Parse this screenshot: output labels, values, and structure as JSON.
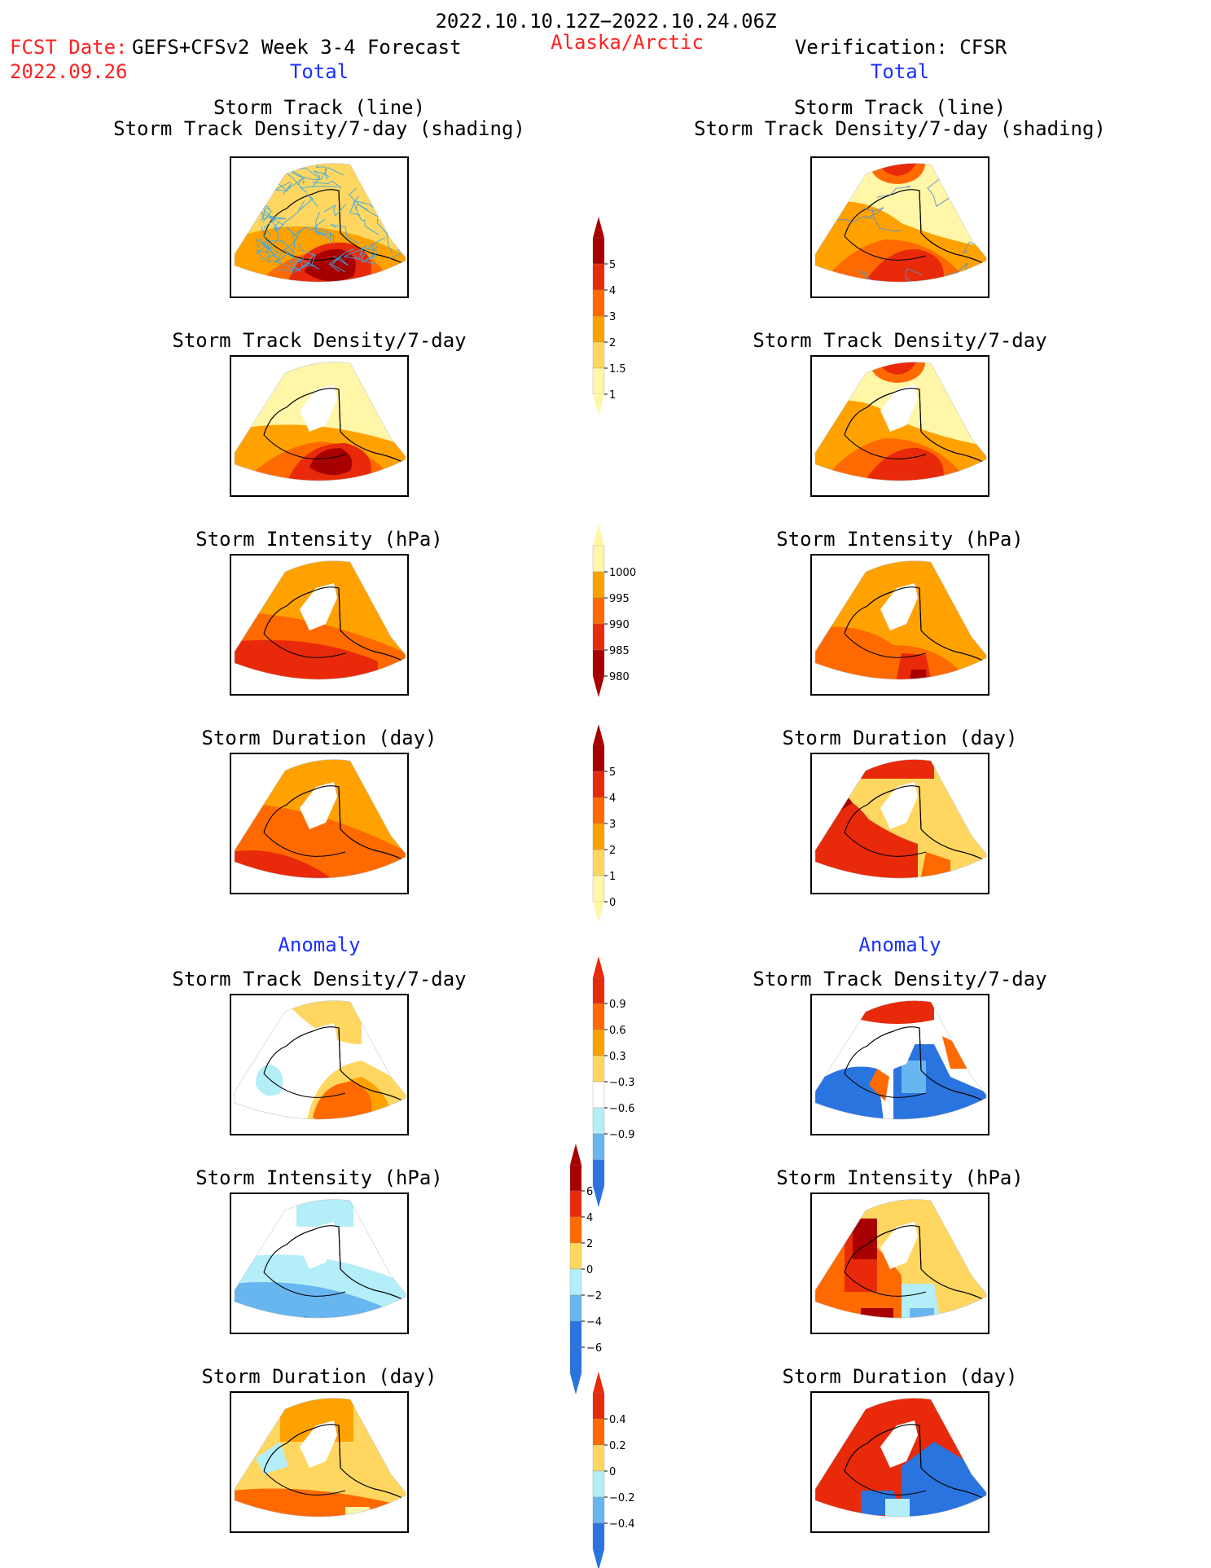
{
  "header": {
    "date_range": "2022.10.10.12Z−2022.10.24.06Z",
    "fcst_label": "FCST Date:",
    "model_label": "GEFS+CFSv2 Week 3-4 Forecast",
    "fcst_date": "2022.09.26",
    "region": "Alaska/Arctic",
    "verification": "Verification: CFSR",
    "left_total": "Total",
    "right_total": "Total"
  },
  "sections": {
    "left_anomaly": "Anomaly",
    "right_anomaly": "Anomaly"
  },
  "panel_titles": {
    "track_line": "Storm Track (line)",
    "track_shading": "Storm Track Density/7-day (shading)",
    "density": "Storm Track Density/7-day",
    "intensity": "Storm Intensity (hPa)",
    "duration": "Storm Duration (day)"
  },
  "colorbars": {
    "density": [
      "5",
      "4",
      "3",
      "2",
      "1.5",
      "1"
    ],
    "intensity": [
      "1000",
      "995",
      "990",
      "985",
      "980"
    ],
    "duration": [
      "5",
      "4",
      "3",
      "2",
      "1",
      "0"
    ],
    "density_anom": [
      "0.9",
      "0.6",
      "0.3",
      "−0.3",
      "−0.6",
      "−0.9"
    ],
    "intensity_anom": [
      "6",
      "4",
      "2",
      "0",
      "−2",
      "−4",
      "−6"
    ],
    "duration_anom": [
      "0.4",
      "0.2",
      "0",
      "−0.2",
      "−0.4"
    ]
  },
  "colors": {
    "c_pale": "#fff6a8",
    "c_yellow": "#ffd760",
    "c_lorange": "#ffa200",
    "c_orange": "#ff6a00",
    "c_red": "#e82a0a",
    "c_dred": "#a80000",
    "c_lblue": "#b4eef8",
    "c_mblue": "#68b6f0",
    "c_blue": "#2a74e0",
    "c_track": "#3aa8e8"
  }
}
